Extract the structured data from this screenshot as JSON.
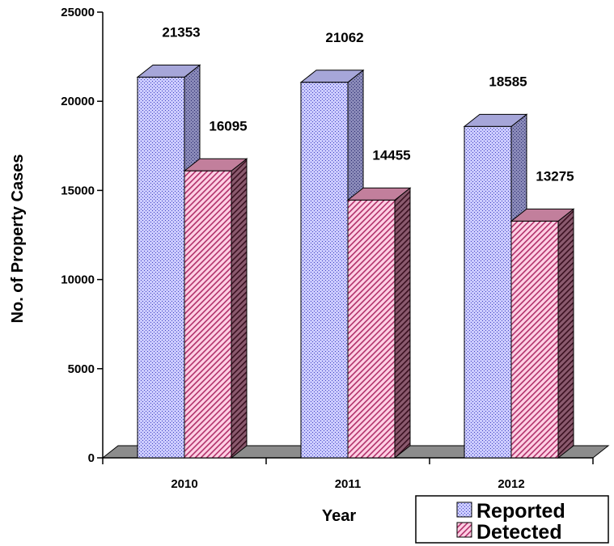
{
  "chart_data": {
    "type": "bar",
    "categories": [
      "2010",
      "2011",
      "2012"
    ],
    "series": [
      {
        "name": "Reported",
        "values": [
          21353,
          21062,
          18585
        ],
        "color": "#ccccff"
      },
      {
        "name": "Detected",
        "values": [
          16095,
          14455,
          13275
        ],
        "color": "#e8a0c0"
      }
    ],
    "y_ticks": [
      "0",
      "5000",
      "10000",
      "15000",
      "20000",
      "25000"
    ],
    "data_labels": {
      "Reported": [
        "21353",
        "21062",
        "18585"
      ],
      "Detected": [
        "16095",
        "14455",
        "13275"
      ]
    },
    "xlabel": "Year",
    "ylabel": "No. of Property Cases",
    "ylim": [
      0,
      25000
    ],
    "grid": false,
    "legend_position": "bottom-right",
    "style": "3d-bar",
    "colors": {
      "floor": "#8c8c8c",
      "reported_side": "#8a8ab8",
      "reported_top": "#a6a6d9",
      "detected_side": "#7a4a5e",
      "detected_top": "#c27f9c"
    }
  }
}
